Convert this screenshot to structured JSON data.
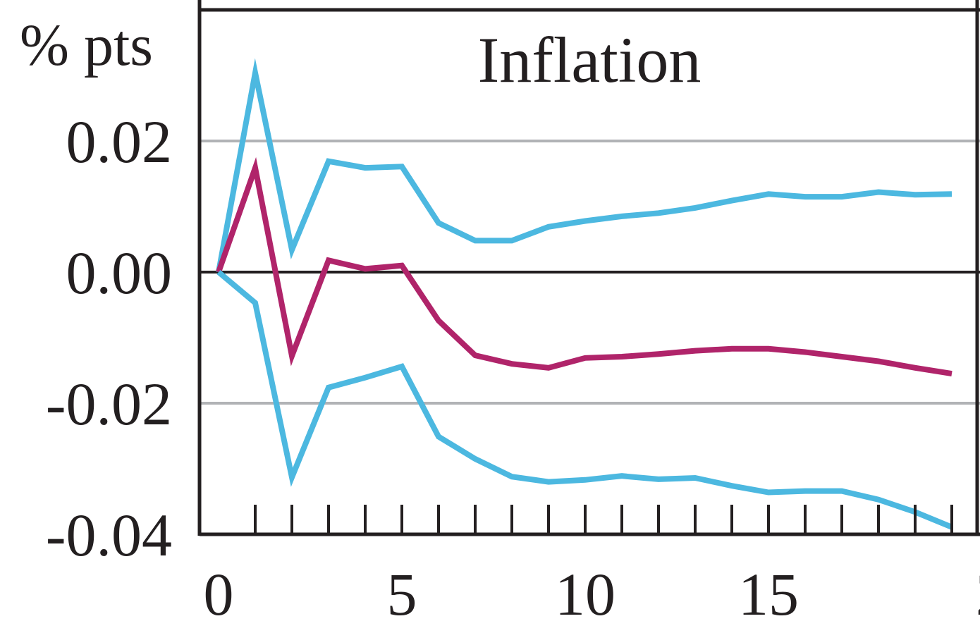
{
  "chart_data": {
    "type": "line",
    "title": "Inflation",
    "ylabel": "% pts",
    "xlabel": "",
    "x": [
      0,
      1,
      2,
      3,
      4,
      5,
      6,
      7,
      8,
      9,
      10,
      11,
      12,
      13,
      14,
      15,
      16,
      17,
      18,
      19,
      20
    ],
    "xlim": [
      0,
      20.9
    ],
    "ylim": [
      -0.04,
      0.04
    ],
    "x_ticks": [
      0,
      5,
      10,
      15
    ],
    "x_tick_labels": [
      "0",
      "5",
      "10",
      "15"
    ],
    "y_ticks": [
      0.02,
      0.0,
      -0.02,
      -0.04
    ],
    "y_tick_labels": [
      "0.02",
      "0.00",
      "-0.02",
      "-0.04"
    ],
    "gridlines_y": [
      0.02,
      -0.02
    ],
    "zero_line": 0.0,
    "series": [
      {
        "role": "upper-band",
        "color": "#4cb8e0",
        "values": [
          0.0,
          0.0304,
          0.0034,
          0.0169,
          0.0159,
          0.0161,
          0.0075,
          0.0048,
          0.0048,
          0.0069,
          0.0078,
          0.0085,
          0.009,
          0.0098,
          0.0109,
          0.0119,
          0.0115,
          0.0115,
          0.0122,
          0.0118,
          0.0119
        ]
      },
      {
        "role": "central",
        "color": "#b0246a",
        "values": [
          0.0,
          0.0159,
          -0.0128,
          0.0018,
          0.0005,
          0.001,
          -0.0074,
          -0.0127,
          -0.014,
          -0.0146,
          -0.0131,
          -0.0129,
          -0.0125,
          -0.012,
          -0.0117,
          -0.0117,
          -0.0122,
          -0.0129,
          -0.0136,
          -0.0146,
          -0.0155
        ]
      },
      {
        "role": "lower-band",
        "color": "#4cb8e0",
        "values": [
          0.0,
          -0.0047,
          -0.0313,
          -0.0176,
          -0.0161,
          -0.0144,
          -0.0251,
          -0.0285,
          -0.0312,
          -0.032,
          -0.0317,
          -0.0311,
          -0.0316,
          -0.0314,
          -0.0326,
          -0.0336,
          -0.0334,
          -0.0334,
          -0.0347,
          -0.0366,
          -0.0389
        ]
      }
    ]
  }
}
